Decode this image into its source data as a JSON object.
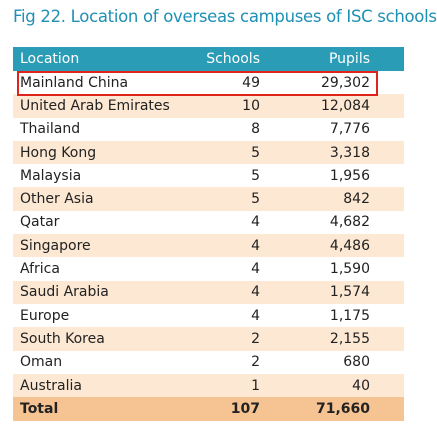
{
  "title": "Fig 22. Location of overseas campuses of ISC schools",
  "table": {
    "header": [
      "Location",
      "Schools",
      "Pupils"
    ],
    "rows": [
      [
        "Mainland China",
        49,
        "29,302"
      ],
      [
        "United Arab Emirates",
        10,
        "12,084"
      ],
      [
        "Thailand",
        8,
        "7,776"
      ],
      [
        "Hong Kong",
        5,
        "3,318"
      ],
      [
        "Malaysia",
        5,
        "1,956"
      ],
      [
        "Other Asia",
        5,
        "842"
      ],
      [
        "Qatar",
        4,
        "4,682"
      ],
      [
        "Singapore",
        4,
        "4,486"
      ],
      [
        "Africa",
        4,
        "1,590"
      ],
      [
        "Saudi Arabia",
        4,
        "1,574"
      ],
      [
        "Europe",
        4,
        "1,175"
      ],
      [
        "South Korea",
        2,
        "2,155"
      ],
      [
        "Oman",
        2,
        "680"
      ],
      [
        "Australia",
        1,
        "40"
      ]
    ],
    "total": [
      "Total",
      107,
      "71,660"
    ]
  }
}
